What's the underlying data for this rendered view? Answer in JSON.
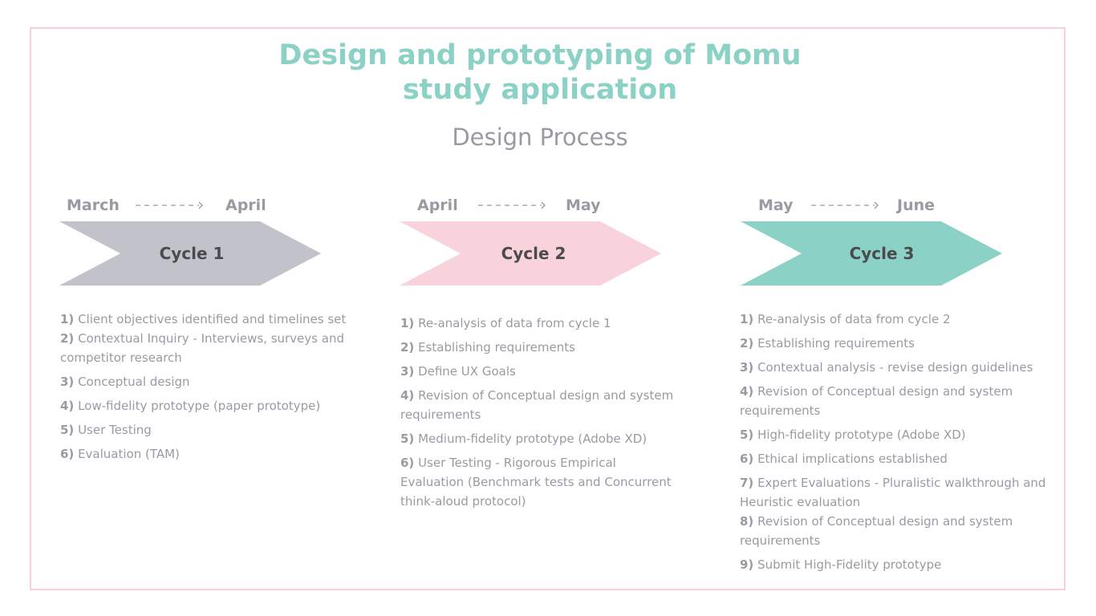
{
  "title": {
    "line1": "Design and prototyping of Momu",
    "line2": "study application"
  },
  "subtitle": "Design Process",
  "colors": {
    "title": "#8bd1c5",
    "cycle1": "#c2c2ca",
    "cycle2": "#f9d3dc",
    "cycle3": "#8bd1c5",
    "border": "#f6d0da"
  },
  "cycles": [
    {
      "label": "Cycle 1",
      "from": "March",
      "to": "April",
      "steps": [
        {
          "num": "1)",
          "text": "Client objectives identified and timelines set"
        },
        {
          "num": "2)",
          "text": "Contextual Inquiry - Interviews, surveys and competitor research"
        },
        {
          "num": "3)",
          "text": "Conceptual design"
        },
        {
          "num": "4)",
          "text": "Low-fidelity prototype (paper prototype)"
        },
        {
          "num": "5)",
          "text": "User Testing"
        },
        {
          "num": "6)",
          "text": "Evaluation (TAM)"
        }
      ]
    },
    {
      "label": "Cycle 2",
      "from": "April",
      "to": "May",
      "steps": [
        {
          "num": "1)",
          "text": "Re-analysis of data from cycle 1"
        },
        {
          "num": "2)",
          "text": "Establishing requirements"
        },
        {
          "num": "3)",
          "text": "Define UX Goals"
        },
        {
          "num": "4)",
          "text": "Revision of Conceptual design and system requirements"
        },
        {
          "num": "5)",
          "text": "Medium-fidelity prototype (Adobe XD)"
        },
        {
          "num": "6)",
          "text": "User Testing  -  Rigorous Empirical Evaluation (Benchmark tests and Concurrent think-aloud protocol)"
        }
      ]
    },
    {
      "label": "Cycle 3",
      "from": "May",
      "to": "June",
      "steps": [
        {
          "num": "1)",
          "text": "Re-analysis of data from cycle 2"
        },
        {
          "num": "2)",
          "text": "Establishing requirements"
        },
        {
          "num": "3)",
          "text": "Contextual analysis - revise design guidelines"
        },
        {
          "num": "4)",
          "text": "Revision of Conceptual design and system requirements"
        },
        {
          "num": "5)",
          "text": "High-fidelity prototype (Adobe XD)"
        },
        {
          "num": "6)",
          "text": "Ethical implications established"
        },
        {
          "num": "7)",
          "text": "Expert Evaluations - Pluralistic walkthrough and Heuristic evaluation"
        },
        {
          "num": "8)",
          "text": "Revision of Conceptual design and system requirements"
        },
        {
          "num": "9)",
          "text": "Submit High-Fidelity prototype"
        }
      ]
    }
  ]
}
